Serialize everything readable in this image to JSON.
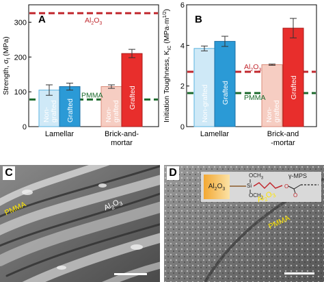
{
  "chart_data": [
    {
      "type": "bar",
      "panel_letter": "A",
      "ylabel": "Strength, σ",
      "ylabel_sub": "f",
      "ylabel_unit": " (MPa)",
      "ylim": [
        0,
        350
      ],
      "yticks": [
        0,
        100,
        200,
        300
      ],
      "groups": [
        "Lamellar",
        "Brick-and-mortar"
      ],
      "group_labels": [
        [
          "Lamellar"
        ],
        [
          "Brick-and-",
          "mortar"
        ]
      ],
      "bars": [
        {
          "group": "Lamellar",
          "label": "Non-grafted",
          "label_lines": [
            "Non-",
            "grafted"
          ],
          "value": 105,
          "error": 15,
          "fill": "#cfe9f7",
          "stroke": "#5ab3e0",
          "label_color": "#ffffff"
        },
        {
          "group": "Lamellar",
          "label": "Grafted",
          "label_lines": [
            "Grafted"
          ],
          "value": 115,
          "error": 10,
          "fill": "#2b9ad6",
          "stroke": "#1d6fa3",
          "label_color": "#ffffff"
        },
        {
          "group": "Brick-and-mortar",
          "label": "Non-grafted",
          "label_lines": [
            "Non-",
            "grafted"
          ],
          "value": 115,
          "error": 5,
          "fill": "#f6cdc2",
          "stroke": "#d98b79",
          "label_color": "#ffffff"
        },
        {
          "group": "Brick-and-mortar",
          "label": "Grafted",
          "label_lines": [
            "Grafted"
          ],
          "value": 210,
          "error": 12,
          "fill": "#e82e2c",
          "stroke": "#a91c1a",
          "label_color": "#ffffff"
        }
      ],
      "reference_lines": [
        {
          "name": "Al2O3",
          "text": "Al",
          "sub": "2",
          "text2": "O",
          "sub2": "3",
          "value": 326,
          "color": "#c1272d"
        },
        {
          "name": "PMMA",
          "text": "PMMA",
          "value": 78,
          "color": "#1b6a2c"
        }
      ]
    },
    {
      "type": "bar",
      "panel_letter": "B",
      "ylabel": "Initiation Toughness, K",
      "ylabel_sub": "IC",
      "ylabel_unit": " (MPa·m",
      "ylabel_sup": "1/2",
      "ylabel_close": ")",
      "ylim": [
        0,
        6
      ],
      "yticks": [
        0,
        2,
        4,
        6
      ],
      "groups": [
        "Lamellar",
        "Brick-and-mortar"
      ],
      "group_labels": [
        [
          "Lamellar"
        ],
        [
          "Brick-and",
          "-mortar"
        ]
      ],
      "bars": [
        {
          "group": "Lamellar",
          "label": "Non-grafted",
          "label_lines": [
            "Non-grafted"
          ],
          "value": 3.85,
          "error": 0.12,
          "fill": "#cfe9f7",
          "stroke": "#5ab3e0",
          "label_color": "#ffffff"
        },
        {
          "group": "Lamellar",
          "label": "Grafted",
          "label_lines": [
            "Grafted"
          ],
          "value": 4.2,
          "error": 0.25,
          "fill": "#2b9ad6",
          "stroke": "#1d6fa3",
          "label_color": "#ffffff"
        },
        {
          "group": "Brick-and-mortar",
          "label": "Non-grafted",
          "label_lines": [
            "Non-",
            "grafted"
          ],
          "value": 3.05,
          "error": 0.03,
          "fill": "#f6cdc2",
          "stroke": "#d98b79",
          "label_color": "#ffffff"
        },
        {
          "group": "Brick-and-mortar",
          "label": "Grafted",
          "label_lines": [
            "Grafted"
          ],
          "value": 4.85,
          "error": 0.48,
          "fill": "#e82e2c",
          "stroke": "#a91c1a",
          "label_color": "#ffffff"
        }
      ],
      "reference_lines": [
        {
          "name": "Al2O3",
          "text": "Al",
          "sub": "2",
          "text2": "O",
          "sub2": "3",
          "value": 2.7,
          "color": "#c1272d"
        },
        {
          "name": "PMMA",
          "text": "PMMA",
          "value": 1.65,
          "color": "#1b6a2c"
        }
      ]
    }
  ],
  "micrographs": {
    "c": {
      "letter": "C",
      "label_pmma": "PMMA",
      "label_al": "Al",
      "label_al_sub": "2",
      "label_al_o": "O",
      "label_al_sub2": "3"
    },
    "d": {
      "letter": "D",
      "label_pmma": "PMMA",
      "label_al": "Al",
      "label_al_sub": "2",
      "label_al_o": "O",
      "label_al_sub2": "3"
    }
  },
  "inset": {
    "al": "Al",
    "al_sub": "2",
    "al_o": "O",
    "al_sub2": "3",
    "ch3_top": "OCH",
    "ch3_top_sub": "3",
    "ch3_bot": "OCH",
    "ch3_bot_sub": "3",
    "si": "Si",
    "o": "O",
    "o2": "O",
    "mps": "γ-MPS"
  },
  "colors": {
    "al2o3_line": "#c1272d",
    "pmma_line": "#1b6a2c",
    "pmma_text": "#ffe600"
  }
}
